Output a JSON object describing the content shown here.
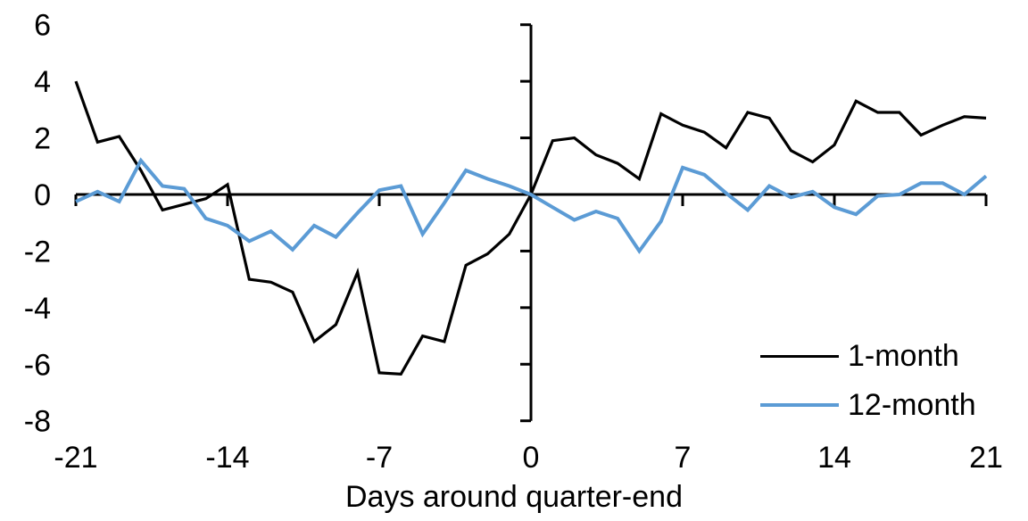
{
  "chart_data": {
    "type": "line",
    "title": "",
    "xlabel": "Days around quarter-end",
    "ylabel": "",
    "xlim": [
      -21,
      21
    ],
    "ylim": [
      -8,
      6
    ],
    "x_ticks": [
      -21,
      -14,
      -7,
      0,
      7,
      14,
      21
    ],
    "y_ticks": [
      6,
      4,
      2,
      0,
      -2,
      -4,
      -6,
      -8
    ],
    "grid": false,
    "legend_position": "inside-bottom-right",
    "axis_color": "#000000",
    "x": [
      -21,
      -20,
      -19,
      -18,
      -17,
      -16,
      -15,
      -14,
      -13,
      -12,
      -11,
      -10,
      -9,
      -8,
      -7,
      -6,
      -5,
      -4,
      -3,
      -2,
      -1,
      0,
      1,
      2,
      3,
      4,
      5,
      6,
      7,
      8,
      9,
      10,
      11,
      12,
      13,
      14,
      15,
      16,
      17,
      18,
      19,
      20,
      21
    ],
    "series": [
      {
        "name": "1-month",
        "color": "#000000",
        "values": [
          4.0,
          1.85,
          2.05,
          0.85,
          -0.55,
          -0.35,
          -0.15,
          0.35,
          -3.0,
          -3.1,
          -3.45,
          -5.2,
          -4.6,
          -2.75,
          -6.3,
          -6.35,
          -5.0,
          -5.2,
          -2.5,
          -2.1,
          -1.4,
          0.0,
          1.9,
          2.0,
          1.4,
          1.1,
          0.55,
          2.85,
          2.45,
          2.2,
          1.65,
          2.9,
          2.7,
          1.55,
          1.15,
          1.75,
          3.3,
          2.9,
          2.9,
          2.1,
          2.45,
          2.75,
          2.7
        ]
      },
      {
        "name": "12-month",
        "color": "#5B9BD5",
        "values": [
          -0.25,
          0.1,
          -0.25,
          1.2,
          0.3,
          0.2,
          -0.85,
          -1.1,
          -1.65,
          -1.3,
          -1.95,
          -1.1,
          -1.5,
          -0.65,
          0.15,
          0.3,
          -1.4,
          -0.3,
          0.85,
          0.55,
          0.3,
          0.0,
          -0.45,
          -0.9,
          -0.6,
          -0.85,
          -2.0,
          -0.95,
          0.95,
          0.7,
          0.05,
          -0.55,
          0.3,
          -0.1,
          0.1,
          -0.45,
          -0.7,
          -0.05,
          0.0,
          0.4,
          0.4,
          0.0,
          0.65
        ]
      }
    ]
  }
}
